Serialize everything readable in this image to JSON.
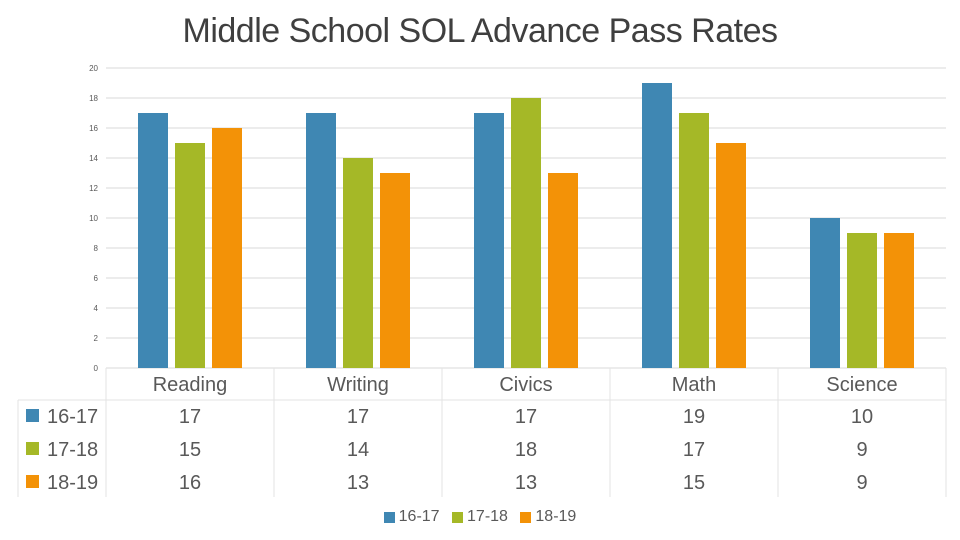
{
  "chart_data": {
    "type": "bar",
    "title": "Middle School SOL Advance Pass Rates",
    "categories": [
      "Reading",
      "Writing",
      "Civics",
      "Math",
      "Science"
    ],
    "series": [
      {
        "name": "16-17",
        "color": "#3f87b3",
        "values": [
          17,
          17,
          17,
          19,
          10
        ]
      },
      {
        "name": "17-18",
        "color": "#a5b827",
        "values": [
          15,
          14,
          18,
          17,
          9
        ]
      },
      {
        "name": "18-19",
        "color": "#f39207",
        "values": [
          16,
          13,
          13,
          15,
          9
        ]
      }
    ],
    "ylim": [
      0,
      20
    ],
    "yticks": [
      0,
      2,
      4,
      6,
      8,
      10,
      12,
      14,
      16,
      18,
      20
    ],
    "xlabel": "",
    "ylabel": "",
    "grid": true,
    "legend": "bottom",
    "data_table": true
  }
}
